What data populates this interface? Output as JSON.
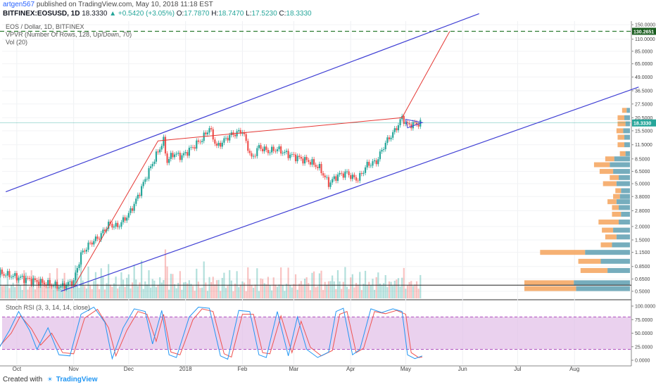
{
  "header": {
    "user": "artgen567",
    "published": "published on TradingView.com, May 10, 2018 11:18 EST",
    "symbol": "BITFINEX:EOSUSD, 1D",
    "last": "18.3330",
    "change": "▲ +0.5420 (+3.05%)",
    "o_label": "O:",
    "o_val": "17.7870",
    "h_label": "H:",
    "h_val": "18.7470",
    "l_label": "L:",
    "l_val": "17.5230",
    "c_label": "C:",
    "c_val": "18.3330"
  },
  "legend": {
    "series": "EOS / Dollar, 1D, BITFINEX",
    "vpvr": "VPVR (Number Of Rows, 128, Up/Down, 70)",
    "vol": "Vol (20)",
    "stoch": "Stoch RSI (3, 3, 14, 14, close)"
  },
  "footer": {
    "created": "Created with",
    "brand": "TradingView"
  },
  "colors": {
    "up": "#26a69a",
    "down": "#ef5350",
    "channel": "#3f3fd4",
    "projection": "#e53935",
    "target": "#2e7d32",
    "stoch_k": "#2196f3",
    "stoch_d": "#ef5350",
    "stoch_band": "#e1bee7",
    "vpvr_up": "#5e9fb1",
    "vpvr_down": "#f5a35c"
  },
  "chart_data": {
    "type": "candlestick",
    "y_scale": "log",
    "price_ticks": [
      "150.0000",
      "110.0000",
      "85.0000",
      "65.0000",
      "49.0000",
      "36.5000",
      "27.5000",
      "20.5000",
      "15.5000",
      "11.5000",
      "8.5000",
      "6.5000",
      "5.0000",
      "3.8000",
      "2.8000",
      "2.0000",
      "1.5000",
      "1.1500",
      "0.8500",
      "0.6500",
      "0.5000"
    ],
    "price_labels": {
      "target": "130.2651",
      "last": "18.3330"
    },
    "x_ticks": [
      "Oct",
      "Nov",
      "Dec",
      "2018",
      "Feb",
      "Mar",
      "Apr",
      "May",
      "Jun",
      "Jul",
      "Aug"
    ],
    "x_dates": [
      "2017-10-01",
      "2017-11-01",
      "2017-12-01",
      "2018-01-01",
      "2018-02-01",
      "2018-03-01",
      "2018-04-01",
      "2018-05-01",
      "2018-06-01",
      "2018-07-01",
      "2018-08-01"
    ],
    "close_path": [
      [
        "2017-09-20",
        0.75
      ],
      [
        "2017-10-01",
        0.68
      ],
      [
        "2017-10-15",
        0.6
      ],
      [
        "2017-10-25",
        0.55
      ],
      [
        "2017-11-01",
        0.62
      ],
      [
        "2017-11-05",
        1.1
      ],
      [
        "2017-11-10",
        1.4
      ],
      [
        "2017-11-15",
        1.6
      ],
      [
        "2017-11-20",
        2.1
      ],
      [
        "2017-11-25",
        2.0
      ],
      [
        "2017-12-01",
        2.6
      ],
      [
        "2017-12-05",
        3.5
      ],
      [
        "2017-12-10",
        5.5
      ],
      [
        "2017-12-15",
        8.5
      ],
      [
        "2017-12-20",
        12.5
      ],
      [
        "2017-12-22",
        8.0
      ],
      [
        "2017-12-25",
        9.5
      ],
      [
        "2017-12-30",
        9.0
      ],
      [
        "2018-01-05",
        11.0
      ],
      [
        "2018-01-10",
        13.0
      ],
      [
        "2018-01-14",
        16.5
      ],
      [
        "2018-01-18",
        11.0
      ],
      [
        "2018-01-25",
        14.0
      ],
      [
        "2018-02-01",
        15.5
      ],
      [
        "2018-02-06",
        8.5
      ],
      [
        "2018-02-10",
        11.0
      ],
      [
        "2018-02-15",
        10.0
      ],
      [
        "2018-02-20",
        10.5
      ],
      [
        "2018-02-25",
        9.5
      ],
      [
        "2018-03-01",
        9.0
      ],
      [
        "2018-03-05",
        8.5
      ],
      [
        "2018-03-10",
        8.0
      ],
      [
        "2018-03-15",
        7.0
      ],
      [
        "2018-03-20",
        5.0
      ],
      [
        "2018-03-25",
        6.0
      ],
      [
        "2018-03-30",
        6.3
      ],
      [
        "2018-04-02",
        5.7
      ],
      [
        "2018-04-05",
        5.5
      ],
      [
        "2018-04-10",
        7.5
      ],
      [
        "2018-04-15",
        8.0
      ],
      [
        "2018-04-20",
        12.0
      ],
      [
        "2018-04-25",
        15.5
      ],
      [
        "2018-04-29",
        20.5
      ],
      [
        "2018-05-02",
        17.5
      ],
      [
        "2018-05-06",
        18.0
      ],
      [
        "2018-05-10",
        18.333
      ]
    ],
    "channel_upper": [
      [
        "2017-09-25",
        4.2
      ],
      [
        "2018-06-10",
        190.0
      ]
    ],
    "channel_lower": [
      [
        "2017-10-25",
        0.5
      ],
      [
        "2018-09-05",
        39.5
      ]
    ],
    "projection": [
      [
        "2017-11-01",
        0.55
      ],
      [
        "2017-12-17",
        12.5
      ],
      [
        "2018-04-29",
        20.5
      ],
      [
        "2018-05-25",
        130.2651
      ]
    ],
    "triangle": [
      [
        "2018-05-01",
        19.8
      ],
      [
        "2018-05-10",
        18.5
      ],
      [
        "2018-05-02",
        16.5
      ]
    ],
    "target_level": 130.2651,
    "horizontal_level": 0.57,
    "volume_note": "Vol (20) histogram shown at bottom of price pane",
    "vpvr": {
      "price_levels": [
        0.53,
        0.6,
        0.78,
        0.95,
        1.15,
        1.35,
        1.6,
        1.85,
        2.2,
        2.6,
        3.0,
        3.4,
        3.8,
        4.3,
        5.0,
        5.7,
        6.5,
        7.5,
        8.5,
        9.5,
        11.5,
        13.5,
        15.5,
        18.0,
        20.5,
        24.0
      ],
      "up_volume": [
        48,
        50,
        20,
        26,
        40,
        16,
        12,
        15,
        10,
        8,
        10,
        12,
        9,
        8,
        12,
        10,
        15,
        18,
        14,
        4,
        5,
        5,
        6,
        4,
        5,
        3
      ],
      "down_volume": [
        46,
        44,
        24,
        20,
        40,
        10,
        10,
        10,
        18,
        8,
        6,
        8,
        6,
        5,
        12,
        8,
        12,
        14,
        8,
        5,
        6,
        6,
        6,
        7,
        6,
        4
      ]
    },
    "stoch_rsi": {
      "y_ticks": [
        "100.0000",
        "75.0000",
        "50.0000",
        "25.0000",
        "0.0000"
      ],
      "upper_band": 80,
      "lower_band": 20,
      "k": [
        [
          "2017-09-20",
          15
        ],
        [
          "2017-09-27",
          55
        ],
        [
          "2017-10-02",
          90
        ],
        [
          "2017-10-08",
          55
        ],
        [
          "2017-10-12",
          20
        ],
        [
          "2017-10-18",
          60
        ],
        [
          "2017-10-24",
          10
        ],
        [
          "2017-10-30",
          8
        ],
        [
          "2017-11-05",
          85
        ],
        [
          "2017-11-12",
          98
        ],
        [
          "2017-11-18",
          70
        ],
        [
          "2017-11-22",
          3
        ],
        [
          "2017-11-28",
          60
        ],
        [
          "2017-12-04",
          95
        ],
        [
          "2017-12-10",
          90
        ],
        [
          "2017-12-14",
          30
        ],
        [
          "2017-12-19",
          92
        ],
        [
          "2017-12-23",
          10
        ],
        [
          "2017-12-27",
          5
        ],
        [
          "2018-01-03",
          80
        ],
        [
          "2018-01-08",
          98
        ],
        [
          "2018-01-14",
          96
        ],
        [
          "2018-01-20",
          8
        ],
        [
          "2018-01-24",
          2
        ],
        [
          "2018-01-30",
          92
        ],
        [
          "2018-02-05",
          90
        ],
        [
          "2018-02-10",
          10
        ],
        [
          "2018-02-14",
          5
        ],
        [
          "2018-02-20",
          90
        ],
        [
          "2018-02-26",
          8
        ],
        [
          "2018-03-03",
          80
        ],
        [
          "2018-03-08",
          20
        ],
        [
          "2018-03-14",
          5
        ],
        [
          "2018-03-20",
          15
        ],
        [
          "2018-03-24",
          90
        ],
        [
          "2018-03-28",
          96
        ],
        [
          "2018-04-02",
          10
        ],
        [
          "2018-04-06",
          20
        ],
        [
          "2018-04-12",
          95
        ],
        [
          "2018-04-18",
          88
        ],
        [
          "2018-04-24",
          95
        ],
        [
          "2018-04-29",
          90
        ],
        [
          "2018-05-02",
          10
        ],
        [
          "2018-05-06",
          3
        ],
        [
          "2018-05-10",
          8
        ]
      ],
      "d": [
        [
          "2017-09-20",
          20
        ],
        [
          "2017-09-28",
          50
        ],
        [
          "2017-10-03",
          82
        ],
        [
          "2017-10-09",
          58
        ],
        [
          "2017-10-14",
          28
        ],
        [
          "2017-10-20",
          50
        ],
        [
          "2017-10-26",
          14
        ],
        [
          "2017-11-01",
          12
        ],
        [
          "2017-11-07",
          78
        ],
        [
          "2017-11-14",
          94
        ],
        [
          "2017-11-20",
          60
        ],
        [
          "2017-11-24",
          8
        ],
        [
          "2017-11-30",
          55
        ],
        [
          "2017-12-06",
          90
        ],
        [
          "2017-12-11",
          85
        ],
        [
          "2017-12-16",
          35
        ],
        [
          "2017-12-20",
          85
        ],
        [
          "2017-12-24",
          15
        ],
        [
          "2017-12-29",
          10
        ],
        [
          "2018-01-05",
          75
        ],
        [
          "2018-01-10",
          95
        ],
        [
          "2018-01-16",
          90
        ],
        [
          "2018-01-22",
          12
        ],
        [
          "2018-01-26",
          6
        ],
        [
          "2018-02-01",
          85
        ],
        [
          "2018-02-07",
          85
        ],
        [
          "2018-02-12",
          14
        ],
        [
          "2018-02-16",
          12
        ],
        [
          "2018-02-22",
          82
        ],
        [
          "2018-02-28",
          14
        ],
        [
          "2018-03-05",
          72
        ],
        [
          "2018-03-10",
          24
        ],
        [
          "2018-03-16",
          8
        ],
        [
          "2018-03-22",
          18
        ],
        [
          "2018-03-26",
          85
        ],
        [
          "2018-03-30",
          90
        ],
        [
          "2018-04-04",
          14
        ],
        [
          "2018-04-08",
          22
        ],
        [
          "2018-04-14",
          90
        ],
        [
          "2018-04-20",
          86
        ],
        [
          "2018-04-26",
          92
        ],
        [
          "2018-05-01",
          85
        ],
        [
          "2018-05-04",
          14
        ],
        [
          "2018-05-08",
          5
        ],
        [
          "2018-05-10",
          6
        ]
      ]
    }
  }
}
